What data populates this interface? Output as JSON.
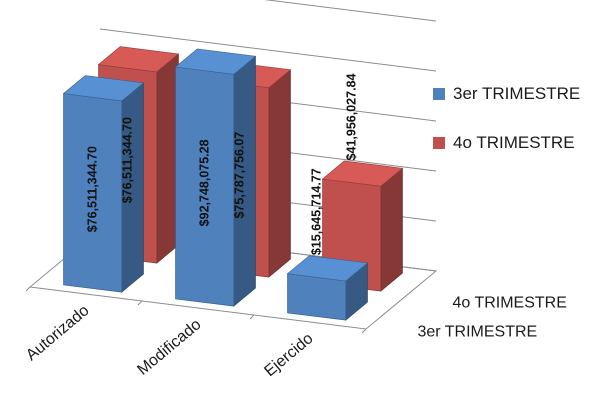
{
  "chart_data": {
    "type": "bar",
    "categories": [
      "Autorizado",
      "Modificado",
      "Ejercido"
    ],
    "series": [
      {
        "name": "3er TRIMESTRE",
        "color": "#4F81BD",
        "values": [
          76511344.7,
          92748075.28,
          15645714.77
        ],
        "labels": [
          "$76,511,344.70",
          "$92,748,075.28",
          "$15,645,714.77"
        ]
      },
      {
        "name": "4o TRIMESTRE",
        "color": "#C0504D",
        "values": [
          76511344.7,
          75787756.07,
          41956027.84
        ],
        "labels": [
          "$76,511,344.70",
          "$75,787,756.07",
          "$41,956,027.84"
        ]
      }
    ],
    "depth_labels": [
      "3er TRIMESTRE",
      "4o TRIMESTRE"
    ],
    "legend_position": "right",
    "grid": true,
    "projection": "3d-column"
  }
}
